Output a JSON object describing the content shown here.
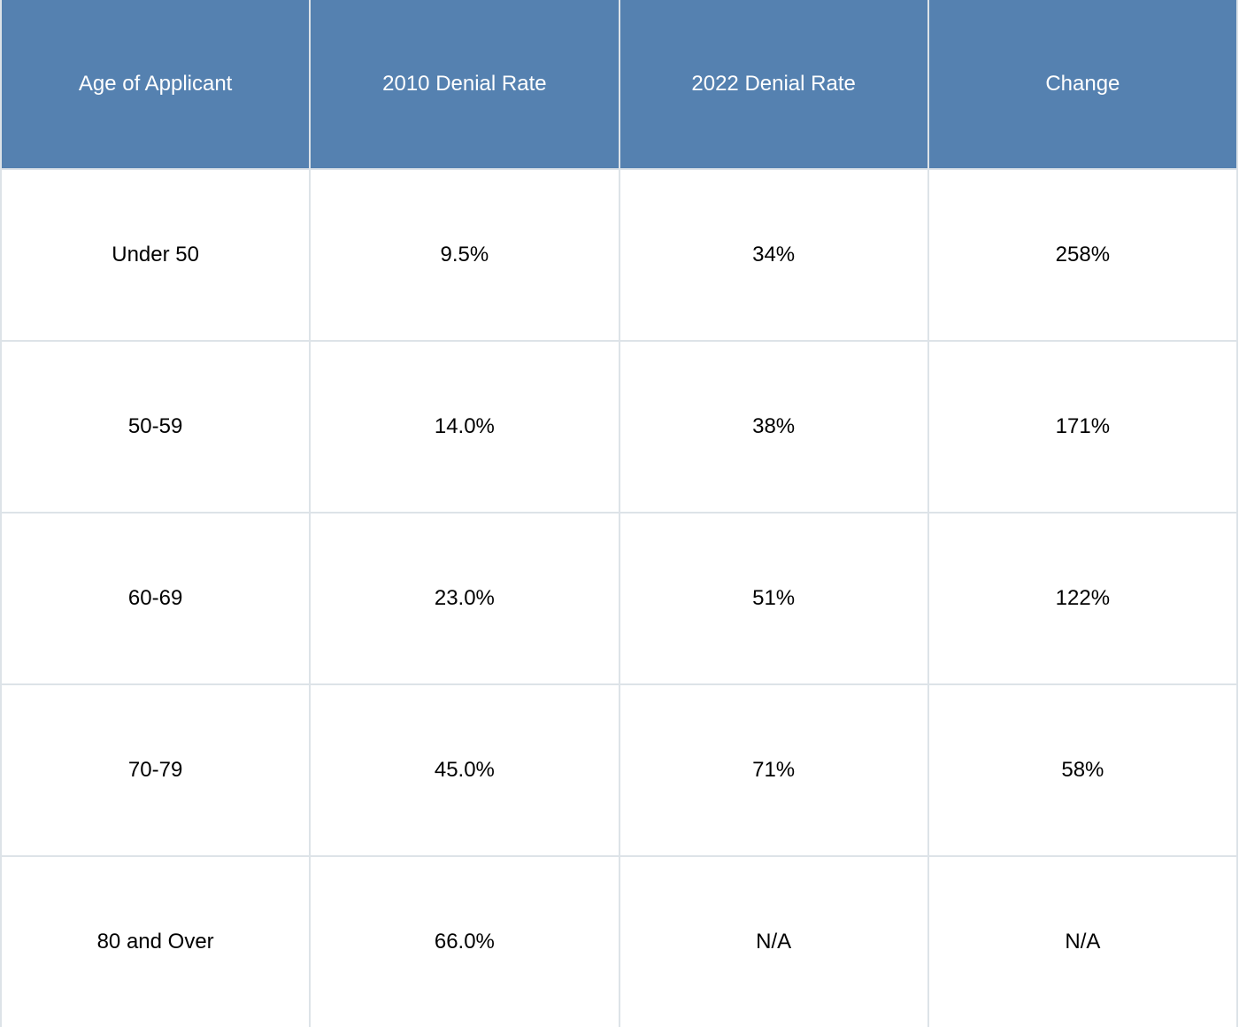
{
  "table": {
    "header": [
      "Age of Applicant",
      "2010 Denial Rate",
      "2022 Denial Rate",
      "Change"
    ],
    "rows": [
      [
        "Under 50",
        "9.5%",
        "34%",
        "258%"
      ],
      [
        "50-59",
        "14.0%",
        "38%",
        "171%"
      ],
      [
        "60-69",
        "23.0%",
        "51%",
        "122%"
      ],
      [
        "70-79",
        "45.0%",
        "71%",
        "58%"
      ],
      [
        "80 and Over",
        "66.0%",
        "N/A",
        "N/A"
      ]
    ]
  }
}
